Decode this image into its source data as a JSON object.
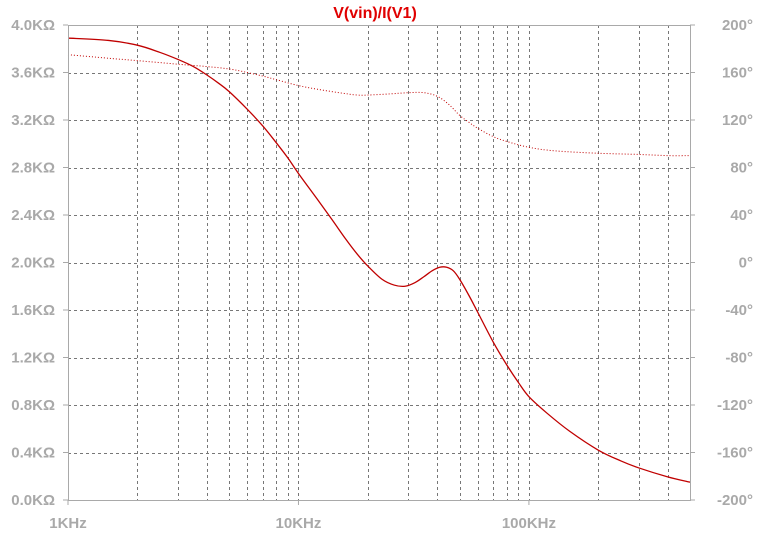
{
  "chart_data": {
    "type": "line",
    "title": "V(vin)/I(V1)",
    "x_scale": "log",
    "xlim": [
      1000,
      500000
    ],
    "ylim_left": [
      0,
      4000
    ],
    "ylim_right": [
      -200,
      200
    ],
    "x_ticks": [
      {
        "value": 1000,
        "label": "1KHz"
      },
      {
        "value": 10000,
        "label": "10KHz"
      },
      {
        "value": 100000,
        "label": "100KHz"
      }
    ],
    "y_ticks_left": [
      {
        "value": 4000,
        "label": "4.0KΩ"
      },
      {
        "value": 3600,
        "label": "3.6KΩ"
      },
      {
        "value": 3200,
        "label": "3.2KΩ"
      },
      {
        "value": 2800,
        "label": "2.8KΩ"
      },
      {
        "value": 2400,
        "label": "2.4KΩ"
      },
      {
        "value": 2000,
        "label": "2.0KΩ"
      },
      {
        "value": 1600,
        "label": "1.6KΩ"
      },
      {
        "value": 1200,
        "label": "1.2KΩ"
      },
      {
        "value": 800,
        "label": "0.8KΩ"
      },
      {
        "value": 400,
        "label": "0.4KΩ"
      },
      {
        "value": 0,
        "label": "0.0KΩ"
      }
    ],
    "y_ticks_right": [
      {
        "value": 200,
        "label": "200°"
      },
      {
        "value": 160,
        "label": "160°"
      },
      {
        "value": 120,
        "label": "120°"
      },
      {
        "value": 80,
        "label": "80°"
      },
      {
        "value": 40,
        "label": "40°"
      },
      {
        "value": 0,
        "label": "0°"
      },
      {
        "value": -40,
        "label": "-40°"
      },
      {
        "value": -80,
        "label": "-80°"
      },
      {
        "value": -120,
        "label": "-120°"
      },
      {
        "value": -160,
        "label": "-160°"
      },
      {
        "value": -200,
        "label": "-200°"
      }
    ],
    "grid": true,
    "colors": {
      "series": "#c00000",
      "title": "#e00000",
      "grid": "#777777",
      "ticks": "#a9a9a9",
      "frame": "#a9a9a9"
    },
    "series": [
      {
        "axis": "left",
        "style": "solid",
        "points": [
          [
            1000,
            3890
          ],
          [
            1500,
            3870
          ],
          [
            2000,
            3830
          ],
          [
            2500,
            3770
          ],
          [
            3000,
            3710
          ],
          [
            3500,
            3650
          ],
          [
            4000,
            3580
          ],
          [
            4500,
            3510
          ],
          [
            5000,
            3440
          ],
          [
            6000,
            3290
          ],
          [
            7000,
            3150
          ],
          [
            8000,
            3010
          ],
          [
            9000,
            2880
          ],
          [
            10000,
            2750
          ],
          [
            12000,
            2540
          ],
          [
            14000,
            2360
          ],
          [
            16000,
            2200
          ],
          [
            18000,
            2070
          ],
          [
            20000,
            1970
          ],
          [
            23000,
            1860
          ],
          [
            26000,
            1810
          ],
          [
            29000,
            1800
          ],
          [
            32000,
            1830
          ],
          [
            35000,
            1880
          ],
          [
            38000,
            1930
          ],
          [
            41000,
            1960
          ],
          [
            44000,
            1960
          ],
          [
            47000,
            1930
          ],
          [
            50000,
            1860
          ],
          [
            55000,
            1720
          ],
          [
            60000,
            1580
          ],
          [
            70000,
            1330
          ],
          [
            80000,
            1140
          ],
          [
            90000,
            990
          ],
          [
            100000,
            870
          ],
          [
            120000,
            730
          ],
          [
            150000,
            580
          ],
          [
            200000,
            420
          ],
          [
            250000,
            330
          ],
          [
            300000,
            270
          ],
          [
            400000,
            195
          ],
          [
            500000,
            150
          ]
        ]
      },
      {
        "axis": "right",
        "style": "dotted",
        "points": [
          [
            1000,
            175
          ],
          [
            1500,
            172
          ],
          [
            2000,
            170
          ],
          [
            3000,
            167
          ],
          [
            4000,
            165
          ],
          [
            5000,
            163
          ],
          [
            6000,
            160
          ],
          [
            7000,
            157
          ],
          [
            8000,
            154
          ],
          [
            10000,
            149
          ],
          [
            12000,
            146
          ],
          [
            15000,
            143
          ],
          [
            18000,
            141
          ],
          [
            20000,
            141
          ],
          [
            25000,
            142
          ],
          [
            30000,
            143
          ],
          [
            35000,
            143
          ],
          [
            40000,
            140
          ],
          [
            45000,
            133
          ],
          [
            50000,
            124
          ],
          [
            55000,
            118
          ],
          [
            60000,
            113
          ],
          [
            70000,
            106
          ],
          [
            80000,
            102
          ],
          [
            100000,
            97
          ],
          [
            130000,
            94
          ],
          [
            200000,
            92
          ],
          [
            300000,
            91
          ],
          [
            400000,
            90
          ],
          [
            500000,
            90
          ]
        ]
      }
    ]
  }
}
